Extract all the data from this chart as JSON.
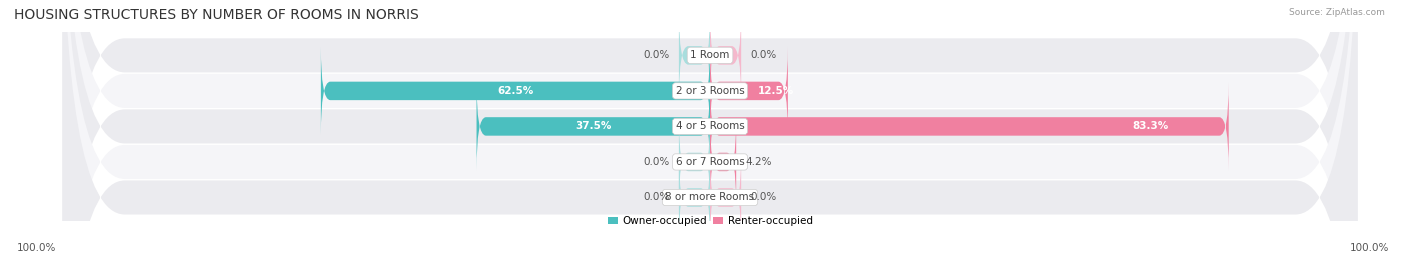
{
  "title": "HOUSING STRUCTURES BY NUMBER OF ROOMS IN NORRIS",
  "source": "Source: ZipAtlas.com",
  "categories": [
    "1 Room",
    "2 or 3 Rooms",
    "4 or 5 Rooms",
    "6 or 7 Rooms",
    "8 or more Rooms"
  ],
  "owner_values": [
    0.0,
    62.5,
    37.5,
    0.0,
    0.0
  ],
  "renter_values": [
    0.0,
    12.5,
    83.3,
    4.2,
    0.0
  ],
  "owner_color": "#4bbfbf",
  "owner_stub_color": "#a8dede",
  "renter_color": "#f080a0",
  "renter_stub_color": "#f5b8cc",
  "owner_label": "Owner-occupied",
  "renter_label": "Renter-occupied",
  "row_bg_color_odd": "#ebebef",
  "row_bg_color_even": "#f5f5f8",
  "max_value": 100.0,
  "stub_size": 5.0,
  "title_fontsize": 10,
  "label_fontsize": 7.5,
  "annotation_fontsize": 7.5,
  "footer_fontsize": 7.5,
  "bar_height": 0.52,
  "background_color": "#ffffff"
}
